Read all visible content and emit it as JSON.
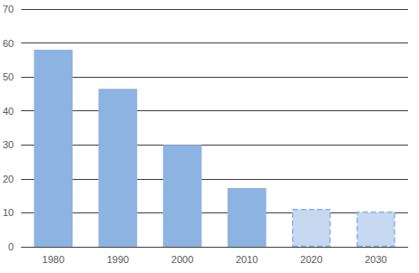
{
  "chart_data": {
    "type": "bar",
    "categories": [
      "1980",
      "1990",
      "2000",
      "2010",
      "2020",
      "2030"
    ],
    "values": [
      58,
      46.5,
      30,
      17.3,
      11.2,
      10.4
    ],
    "colors": [
      "#8db3e2",
      "#8db3e2",
      "#8db3e2",
      "#8db3e2",
      "#c6d9f1",
      "#c6d9f1"
    ],
    "ylim": [
      0,
      70
    ],
    "yticks": [
      0,
      10,
      20,
      30,
      40,
      50,
      60,
      70
    ],
    "grid": true
  }
}
